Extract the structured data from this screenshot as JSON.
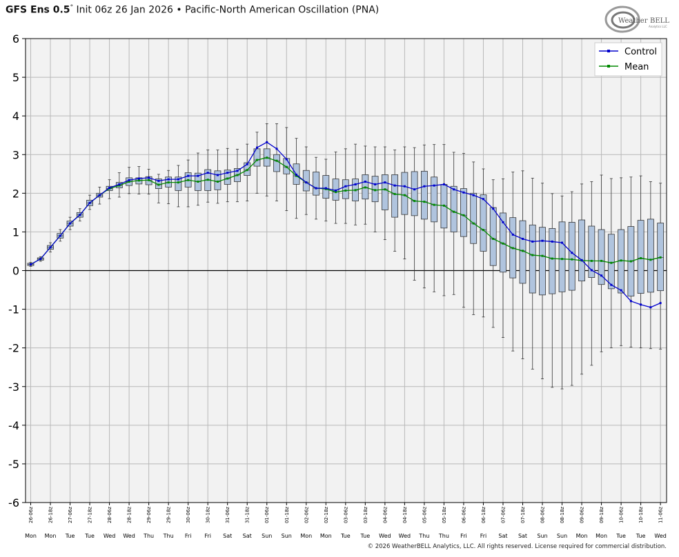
{
  "header": {
    "model": "GFS Ens 0.5",
    "degree": "°",
    "init": "Init 06z 26 Jan 2026",
    "bullet": "•",
    "index_name": "Pacific-North American Oscillation (PNA)"
  },
  "logo": {
    "word_big": "Weather",
    "word_small": "BELL",
    "sub": "Analytics LLC"
  },
  "footer": {
    "copyright": "© 2026 WeatherBELL Analytics, LLC. All rights reserved. License required for commercial distribution."
  },
  "colors": {
    "control": "#0000cc",
    "mean": "#008800",
    "box_fill": "#b0c4de",
    "box_edge": "#333333",
    "grid": "#b8b8b8",
    "plot_bg": "#f2f2f2"
  },
  "chart_data": {
    "type": "box",
    "ylim": [
      -6,
      6
    ],
    "yticks": [
      6,
      5,
      4,
      3,
      2,
      1,
      0,
      -1,
      -2,
      -3,
      -4,
      -5,
      -6
    ],
    "legend": {
      "position": "top-right",
      "entries": [
        "Control",
        "Mean"
      ]
    },
    "categories": [
      "26-06z",
      "26-18z",
      "27-06z",
      "27-18z",
      "28-06z",
      "28-18z",
      "29-06z",
      "29-18z",
      "30-06z",
      "30-18z",
      "31-06z",
      "31-18z",
      "01-06z",
      "01-18z",
      "02-06z",
      "02-18z",
      "03-06z",
      "03-18z",
      "04-06z",
      "04-18z",
      "05-06z",
      "05-18z",
      "06-06z",
      "06-18z",
      "07-06z",
      "07-18z",
      "08-06z",
      "08-18z",
      "09-06z",
      "09-18z",
      "10-06z",
      "10-18z",
      "11-06z"
    ],
    "days": [
      "Mon",
      "Mon",
      "Tue",
      "Tue",
      "Wed",
      "Wed",
      "Thu",
      "Thu",
      "Fri",
      "Fri",
      "Sat",
      "Sat",
      "Sun",
      "Sun",
      "Mon",
      "Mon",
      "Tue",
      "Tue",
      "Wed",
      "Wed",
      "Thu",
      "Thu",
      "Fri",
      "Fri",
      "Sat",
      "Sat",
      "Sun",
      "Sun",
      "Mon",
      "Mon",
      "Tue",
      "Tue",
      "Wed"
    ],
    "series": [
      {
        "name": "Control",
        "values": [
          0.16,
          0.3,
          0.6,
          0.9,
          1.22,
          1.44,
          1.75,
          1.95,
          2.14,
          2.23,
          2.34,
          2.38,
          2.4,
          2.32,
          2.36,
          2.36,
          2.45,
          2.45,
          2.53,
          2.47,
          2.53,
          2.58,
          2.75,
          3.18,
          3.32,
          3.15,
          2.88,
          2.48,
          2.28,
          2.13,
          2.13,
          2.07,
          2.18,
          2.23,
          2.3,
          2.23,
          2.28,
          2.2,
          2.18,
          2.1,
          2.18,
          2.2,
          2.23,
          2.1,
          2.02,
          1.95,
          1.85,
          1.6,
          1.25,
          0.93,
          0.82,
          0.75,
          0.77,
          0.75,
          0.72,
          0.46,
          0.27,
          0.01,
          -0.13,
          -0.37,
          -0.51,
          -0.79,
          -0.88,
          -0.95,
          -0.84
        ]
      },
      {
        "name": "Mean",
        "values": [
          0.16,
          0.3,
          0.6,
          0.9,
          1.22,
          1.44,
          1.75,
          1.95,
          2.12,
          2.2,
          2.3,
          2.33,
          2.34,
          2.22,
          2.28,
          2.28,
          2.34,
          2.3,
          2.35,
          2.3,
          2.38,
          2.47,
          2.6,
          2.86,
          2.92,
          2.84,
          2.68,
          2.45,
          2.28,
          2.13,
          2.11,
          2.03,
          2.07,
          2.08,
          2.15,
          2.08,
          2.1,
          1.98,
          1.95,
          1.8,
          1.78,
          1.7,
          1.68,
          1.52,
          1.43,
          1.22,
          1.05,
          0.82,
          0.7,
          0.58,
          0.51,
          0.4,
          0.38,
          0.31,
          0.3,
          0.29,
          0.26,
          0.25,
          0.25,
          0.2,
          0.26,
          0.24,
          0.32,
          0.28,
          0.34
        ]
      }
    ],
    "boxes": {
      "q1": [
        0.13,
        0.27,
        0.55,
        0.84,
        1.15,
        1.38,
        1.68,
        1.9,
        2.07,
        2.14,
        2.2,
        2.24,
        2.22,
        2.12,
        2.16,
        2.07,
        2.16,
        2.07,
        2.07,
        2.09,
        2.23,
        2.3,
        2.46,
        2.7,
        2.7,
        2.56,
        2.5,
        2.23,
        2.06,
        1.95,
        1.87,
        1.82,
        1.86,
        1.8,
        1.85,
        1.78,
        1.57,
        1.38,
        1.45,
        1.42,
        1.33,
        1.26,
        1.1,
        1.0,
        0.88,
        0.7,
        0.5,
        0.13,
        -0.04,
        -0.19,
        -0.33,
        -0.58,
        -0.63,
        -0.6,
        -0.55,
        -0.51,
        -0.27,
        -0.18,
        -0.36,
        -0.47,
        -0.58,
        -0.66,
        -0.59,
        -0.56,
        -0.52
      ],
      "q3": [
        0.19,
        0.33,
        0.65,
        0.96,
        1.28,
        1.5,
        1.82,
        2.0,
        2.18,
        2.28,
        2.4,
        2.4,
        2.43,
        2.37,
        2.42,
        2.42,
        2.53,
        2.52,
        2.61,
        2.58,
        2.6,
        2.64,
        2.79,
        3.15,
        3.15,
        3.0,
        2.9,
        2.76,
        2.59,
        2.55,
        2.46,
        2.37,
        2.35,
        2.37,
        2.48,
        2.44,
        2.48,
        2.48,
        2.54,
        2.56,
        2.57,
        2.42,
        2.23,
        2.18,
        2.12,
        2.0,
        1.96,
        1.63,
        1.49,
        1.37,
        1.29,
        1.18,
        1.12,
        1.09,
        1.26,
        1.25,
        1.31,
        1.15,
        1.06,
        0.94,
        1.06,
        1.14,
        1.3,
        1.33,
        1.23
      ],
      "lo": [
        0.11,
        0.24,
        0.48,
        0.76,
        1.06,
        1.28,
        1.58,
        1.72,
        1.86,
        1.9,
        1.99,
        1.98,
        1.98,
        1.75,
        1.73,
        1.65,
        1.65,
        1.69,
        1.77,
        1.74,
        1.78,
        1.78,
        1.8,
        2.0,
        1.93,
        1.8,
        1.55,
        1.35,
        1.45,
        1.33,
        1.28,
        1.22,
        1.22,
        1.18,
        1.2,
        1.0,
        0.8,
        0.5,
        0.3,
        -0.25,
        -0.45,
        -0.55,
        -0.65,
        -0.62,
        -0.95,
        -1.14,
        -1.2,
        -1.47,
        -1.73,
        -2.08,
        -2.28,
        -2.55,
        -2.8,
        -3.02,
        -3.06,
        -2.97,
        -2.68,
        -2.45,
        -2.1,
        -2.0,
        -1.94,
        -1.98,
        -2.0,
        -2.02,
        -2.03
      ],
      "hi": [
        0.21,
        0.36,
        0.72,
        1.06,
        1.38,
        1.6,
        1.95,
        2.16,
        2.35,
        2.53,
        2.67,
        2.69,
        2.62,
        2.49,
        2.59,
        2.72,
        2.86,
        3.04,
        3.12,
        3.12,
        3.16,
        3.14,
        3.27,
        3.58,
        3.8,
        3.8,
        3.7,
        3.42,
        3.2,
        2.93,
        2.88,
        3.07,
        3.15,
        3.27,
        3.22,
        3.2,
        3.2,
        3.12,
        3.2,
        3.18,
        3.25,
        3.26,
        3.26,
        3.06,
        3.03,
        2.81,
        2.63,
        2.35,
        2.37,
        2.55,
        2.58,
        2.39,
        2.26,
        1.99,
        1.93,
        2.04,
        2.24,
        2.3,
        2.47,
        2.38,
        2.4,
        2.42,
        2.45,
        2.3,
        2.26
      ],
      "med": [
        0.16,
        0.3,
        0.6,
        0.9,
        1.22,
        1.44,
        1.75,
        1.95,
        2.12,
        2.2,
        2.3,
        2.33,
        2.34,
        2.22,
        2.28,
        2.28,
        2.34,
        2.3,
        2.35,
        2.3,
        2.38,
        2.47,
        2.6,
        2.86,
        2.92,
        2.84,
        2.68,
        2.45,
        2.28,
        2.13,
        2.11,
        2.03,
        2.07,
        2.08,
        2.15,
        2.08,
        2.1,
        1.98,
        1.95,
        1.8,
        1.78,
        1.7,
        1.68,
        1.52,
        1.43,
        1.22,
        1.05,
        0.82,
        0.7,
        0.58,
        0.51,
        0.4,
        0.38,
        0.31,
        0.3,
        0.29,
        0.26,
        0.25,
        0.25,
        0.2,
        0.26,
        0.24,
        0.32,
        0.28,
        0.34
      ]
    }
  }
}
